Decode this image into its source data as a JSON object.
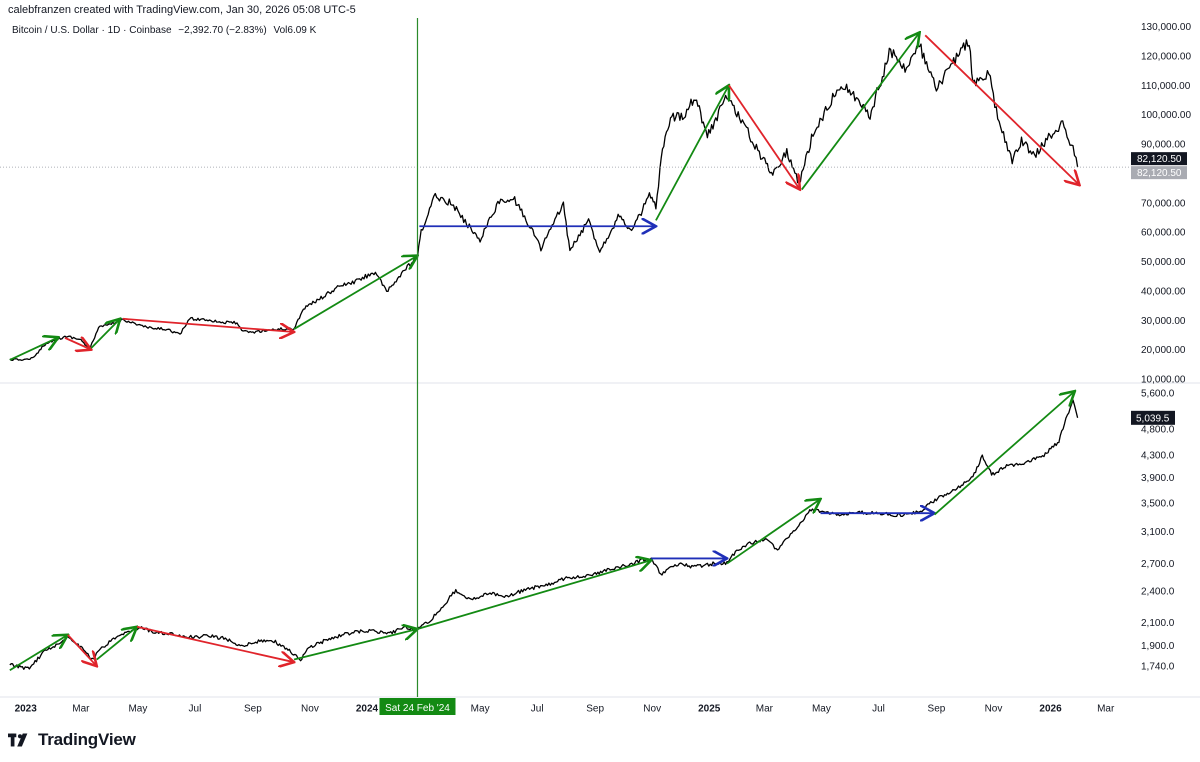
{
  "header": {
    "credit": "calebfranzen created with TradingView.com, Jan 30, 2026 05:08 UTC-5",
    "symbol": "Bitcoin / U.S. Dollar · 1D · Coinbase",
    "change": "−2,392.70 (−2.83%)",
    "volume_label": "Vol",
    "volume": "6.09 K"
  },
  "brand": {
    "name": "TradingView",
    "logo_icon": "tradingview-logo-icon"
  },
  "colors": {
    "up_arrow": "#138a13",
    "down_arrow": "#e0242b",
    "flat_arrow": "#1f2fb8",
    "price_line": "#000000",
    "vline": "#2b8a2b",
    "crosshair_tag": "#138a13"
  },
  "chart_data": [
    {
      "type": "line",
      "pane": "top",
      "title": "Bitcoin / U.S. Dollar · 1D · Coinbase",
      "ylim": [
        10000,
        130000
      ],
      "y_ticks": [
        "130,000.00",
        "120,000.00",
        "110,000.00",
        "100,000.00",
        "90,000.00",
        "82,120.50",
        "70,000.00",
        "60,000.00",
        "50,000.00",
        "40,000.00",
        "30,000.00",
        "20,000.00",
        "10,000.00"
      ],
      "last_value_label": "82,120.50",
      "last_value_label_2": "82,120.50",
      "last_value": 82120.5,
      "series": [
        {
          "values": [
            [
              "2022-12-15",
              16600
            ],
            [
              "2023-01-01",
              16600
            ],
            [
              "2023-01-10",
              17300
            ],
            [
              "2023-01-20",
              21500
            ],
            [
              "2023-02-01",
              23400
            ],
            [
              "2023-02-15",
              24500
            ],
            [
              "2023-03-01",
              23400
            ],
            [
              "2023-03-10",
              20000
            ],
            [
              "2023-03-20",
              27500
            ],
            [
              "2023-04-01",
              28500
            ],
            [
              "2023-04-15",
              30300
            ],
            [
              "2023-05-01",
              28500
            ],
            [
              "2023-05-15",
              27200
            ],
            [
              "2023-06-01",
              27000
            ],
            [
              "2023-06-15",
              25100
            ],
            [
              "2023-06-25",
              30500
            ],
            [
              "2023-07-15",
              30200
            ],
            [
              "2023-08-01",
              29200
            ],
            [
              "2023-08-15",
              29200
            ],
            [
              "2023-08-20",
              26200
            ],
            [
              "2023-09-01",
              25900
            ],
            [
              "2023-09-15",
              26600
            ],
            [
              "2023-10-01",
              27000
            ],
            [
              "2023-10-15",
              27100
            ],
            [
              "2023-10-25",
              34000
            ],
            [
              "2023-11-10",
              37000
            ],
            [
              "2023-12-05",
              42000
            ],
            [
              "2023-12-15",
              42500
            ],
            [
              "2024-01-10",
              46500
            ],
            [
              "2024-01-22",
              39500
            ],
            [
              "2024-02-10",
              47000
            ],
            [
              "2024-02-24",
              51500
            ],
            [
              "2024-02-28",
              60000
            ],
            [
              "2024-03-14",
              72500
            ],
            [
              "2024-04-01",
              69700
            ],
            [
              "2024-04-15",
              63500
            ],
            [
              "2024-05-01",
              57500
            ],
            [
              "2024-05-20",
              70000
            ],
            [
              "2024-06-07",
              71000
            ],
            [
              "2024-06-25",
              61000
            ],
            [
              "2024-07-05",
              54500
            ],
            [
              "2024-07-29",
              69500
            ],
            [
              "2024-08-05",
              53500
            ],
            [
              "2024-08-25",
              64000
            ],
            [
              "2024-09-06",
              53500
            ],
            [
              "2024-09-27",
              66000
            ],
            [
              "2024-10-10",
              60000
            ],
            [
              "2024-10-29",
              72500
            ],
            [
              "2024-11-05",
              68500
            ],
            [
              "2024-11-12",
              88000
            ],
            [
              "2024-11-22",
              99000
            ],
            [
              "2024-12-05",
              100000
            ],
            [
              "2024-12-17",
              106500
            ],
            [
              "2024-12-30",
              92500
            ],
            [
              "2025-01-20",
              106500
            ],
            [
              "2025-02-01",
              100000
            ],
            [
              "2025-02-25",
              86000
            ],
            [
              "2025-03-10",
              80000
            ],
            [
              "2025-03-25",
              87500
            ],
            [
              "2025-04-07",
              76500
            ],
            [
              "2025-04-22",
              93500
            ],
            [
              "2025-05-22",
              111000
            ],
            [
              "2025-06-22",
              100000
            ],
            [
              "2025-07-14",
              122000
            ],
            [
              "2025-07-31",
              115500
            ],
            [
              "2025-08-14",
              123500
            ],
            [
              "2025-09-01",
              108000
            ],
            [
              "2025-09-15",
              116000
            ],
            [
              "2025-10-06",
              125500
            ],
            [
              "2025-10-10",
              110000
            ],
            [
              "2025-10-27",
              114000
            ],
            [
              "2025-11-04",
              101000
            ],
            [
              "2025-11-21",
              84000
            ],
            [
              "2025-12-01",
              91000
            ],
            [
              "2025-12-15",
              86000
            ],
            [
              "2026-01-05",
              94500
            ],
            [
              "2026-01-14",
              97000
            ],
            [
              "2026-01-25",
              88000
            ],
            [
              "2026-01-30",
              82120
            ]
          ]
        }
      ],
      "annotations": [
        {
          "kind": "arrow",
          "color": "up",
          "from": [
            "2022-12-15",
            16500
          ],
          "to": [
            "2023-02-05",
            24200
          ]
        },
        {
          "kind": "arrow",
          "color": "down",
          "from": [
            "2023-02-12",
            24000
          ],
          "to": [
            "2023-03-12",
            20000
          ]
        },
        {
          "kind": "arrow",
          "color": "up",
          "from": [
            "2023-03-12",
            20500
          ],
          "to": [
            "2023-04-12",
            30500
          ]
        },
        {
          "kind": "arrow",
          "color": "down",
          "from": [
            "2023-04-15",
            30500
          ],
          "to": [
            "2023-10-15",
            26000
          ]
        },
        {
          "kind": "arrow",
          "color": "up",
          "from": [
            "2023-10-15",
            27000
          ],
          "to": [
            "2024-02-24",
            52000
          ]
        },
        {
          "kind": "arrow",
          "color": "flat",
          "from": [
            "2024-02-26",
            62000
          ],
          "to": [
            "2024-11-05",
            62000
          ]
        },
        {
          "kind": "arrow",
          "color": "up",
          "from": [
            "2024-11-05",
            64000
          ],
          "to": [
            "2025-01-22",
            110000
          ]
        },
        {
          "kind": "arrow",
          "color": "down",
          "from": [
            "2025-01-22",
            110000
          ],
          "to": [
            "2025-04-08",
            74500
          ]
        },
        {
          "kind": "arrow",
          "color": "up",
          "from": [
            "2025-04-10",
            74500
          ],
          "to": [
            "2025-08-14",
            128000
          ]
        },
        {
          "kind": "arrow",
          "color": "down",
          "from": [
            "2025-08-20",
            127000
          ],
          "to": [
            "2026-02-01",
            76000
          ]
        }
      ]
    },
    {
      "type": "line",
      "pane": "bottom",
      "scale": "log",
      "ylim": [
        1640,
        5800
      ],
      "y_ticks": [
        "5,600.0",
        "5,039.5",
        "4,800.0",
        "4,300.0",
        "3,900.0",
        "3,500.0",
        "3,100.0",
        "2,700.0",
        "2,400.0",
        "2,100.0",
        "1,900.0",
        "1,740.0"
      ],
      "last_value_label": "5,039.5",
      "last_value": 5039.5,
      "series": [
        {
          "values": [
            [
              "2022-12-15",
              1750
            ],
            [
              "2023-01-05",
              1720
            ],
            [
              "2023-01-20",
              1850
            ],
            [
              "2023-02-01",
              1900
            ],
            [
              "2023-02-15",
              1970
            ],
            [
              "2023-03-01",
              1890
            ],
            [
              "2023-03-13",
              1790
            ],
            [
              "2023-03-25",
              1890
            ],
            [
              "2023-04-05",
              1950
            ],
            [
              "2023-04-20",
              2010
            ],
            [
              "2023-05-05",
              2050
            ],
            [
              "2023-05-20",
              2010
            ],
            [
              "2023-06-10",
              1990
            ],
            [
              "2023-06-25",
              1970
            ],
            [
              "2023-07-15",
              1980
            ],
            [
              "2023-08-01",
              1960
            ],
            [
              "2023-08-20",
              1900
            ],
            [
              "2023-09-10",
              1940
            ],
            [
              "2023-09-25",
              1930
            ],
            [
              "2023-10-10",
              1860
            ],
            [
              "2023-10-22",
              1790
            ],
            [
              "2023-11-01",
              1890
            ],
            [
              "2023-11-20",
              1950
            ],
            [
              "2023-12-10",
              2000
            ],
            [
              "2024-01-05",
              2030
            ],
            [
              "2024-01-25",
              2000
            ],
            [
              "2024-02-10",
              2060
            ],
            [
              "2024-02-24",
              2030
            ],
            [
              "2024-03-10",
              2130
            ],
            [
              "2024-03-25",
              2280
            ],
            [
              "2024-04-05",
              2410
            ],
            [
              "2024-04-20",
              2310
            ],
            [
              "2024-05-10",
              2380
            ],
            [
              "2024-05-30",
              2350
            ],
            [
              "2024-06-20",
              2420
            ],
            [
              "2024-07-15",
              2470
            ],
            [
              "2024-08-01",
              2540
            ],
            [
              "2024-08-15",
              2550
            ],
            [
              "2024-09-01",
              2590
            ],
            [
              "2024-09-20",
              2640
            ],
            [
              "2024-10-10",
              2700
            ],
            [
              "2024-10-31",
              2770
            ],
            [
              "2024-11-10",
              2580
            ],
            [
              "2024-11-30",
              2700
            ],
            [
              "2024-12-15",
              2660
            ],
            [
              "2025-01-05",
              2700
            ],
            [
              "2025-01-20",
              2710
            ],
            [
              "2025-02-01",
              2870
            ],
            [
              "2025-02-15",
              2950
            ],
            [
              "2025-03-01",
              3000
            ],
            [
              "2025-03-15",
              2870
            ],
            [
              "2025-04-01",
              3100
            ],
            [
              "2025-04-20",
              3400
            ],
            [
              "2025-05-05",
              3360
            ],
            [
              "2025-05-25",
              3330
            ],
            [
              "2025-06-15",
              3360
            ],
            [
              "2025-07-05",
              3340
            ],
            [
              "2025-07-25",
              3320
            ],
            [
              "2025-08-15",
              3380
            ],
            [
              "2025-09-01",
              3560
            ],
            [
              "2025-09-20",
              3700
            ],
            [
              "2025-10-10",
              3910
            ],
            [
              "2025-10-20",
              4280
            ],
            [
              "2025-10-30",
              3950
            ],
            [
              "2025-11-15",
              4100
            ],
            [
              "2025-12-05",
              4150
            ],
            [
              "2025-12-25",
              4300
            ],
            [
              "2026-01-10",
              4550
            ],
            [
              "2026-01-25",
              5450
            ],
            [
              "2026-01-30",
              5040
            ]
          ]
        }
      ],
      "annotations": [
        {
          "kind": "arrow",
          "color": "up",
          "from": [
            "2022-12-15",
            1710
          ],
          "to": [
            "2023-02-15",
            1990
          ]
        },
        {
          "kind": "arrow",
          "color": "down",
          "from": [
            "2023-02-15",
            1990
          ],
          "to": [
            "2023-03-18",
            1740
          ]
        },
        {
          "kind": "arrow",
          "color": "up",
          "from": [
            "2023-03-18",
            1790
          ],
          "to": [
            "2023-04-30",
            2060
          ]
        },
        {
          "kind": "arrow",
          "color": "down",
          "from": [
            "2023-04-30",
            2060
          ],
          "to": [
            "2023-10-15",
            1770
          ]
        },
        {
          "kind": "arrow",
          "color": "up",
          "from": [
            "2023-10-15",
            1790
          ],
          "to": [
            "2024-02-24",
            2040
          ]
        },
        {
          "kind": "arrow",
          "color": "up",
          "from": [
            "2024-02-24",
            2040
          ],
          "to": [
            "2024-10-31",
            2740
          ]
        },
        {
          "kind": "arrow",
          "color": "flat",
          "from": [
            "2024-10-31",
            2760
          ],
          "to": [
            "2025-01-20",
            2760
          ]
        },
        {
          "kind": "arrow",
          "color": "up",
          "from": [
            "2025-01-20",
            2700
          ],
          "to": [
            "2025-04-30",
            3560
          ]
        },
        {
          "kind": "arrow",
          "color": "flat",
          "from": [
            "2025-04-30",
            3350
          ],
          "to": [
            "2025-08-30",
            3350
          ]
        },
        {
          "kind": "arrow",
          "color": "up",
          "from": [
            "2025-08-30",
            3330
          ],
          "to": [
            "2026-01-27",
            5650
          ]
        }
      ]
    }
  ],
  "x_axis": {
    "range": [
      "2022-12-12",
      "2026-03-27"
    ],
    "ticks": [
      {
        "date": "2023-01-01",
        "label": "2023",
        "bold": true
      },
      {
        "date": "2023-03-01",
        "label": "Mar",
        "bold": false
      },
      {
        "date": "2023-05-01",
        "label": "May",
        "bold": false
      },
      {
        "date": "2023-07-01",
        "label": "Jul",
        "bold": false
      },
      {
        "date": "2023-09-01",
        "label": "Sep",
        "bold": false
      },
      {
        "date": "2023-11-01",
        "label": "Nov",
        "bold": false
      },
      {
        "date": "2024-01-01",
        "label": "2024",
        "bold": true
      },
      {
        "date": "2024-05-01",
        "label": "May",
        "bold": false
      },
      {
        "date": "2024-07-01",
        "label": "Jul",
        "bold": false
      },
      {
        "date": "2024-09-01",
        "label": "Sep",
        "bold": false
      },
      {
        "date": "2024-11-01",
        "label": "Nov",
        "bold": false
      },
      {
        "date": "2025-01-01",
        "label": "2025",
        "bold": true
      },
      {
        "date": "2025-03-01",
        "label": "Mar",
        "bold": false
      },
      {
        "date": "2025-05-01",
        "label": "May",
        "bold": false
      },
      {
        "date": "2025-07-01",
        "label": "Jul",
        "bold": false
      },
      {
        "date": "2025-09-01",
        "label": "Sep",
        "bold": false
      },
      {
        "date": "2025-11-01",
        "label": "Nov",
        "bold": false
      },
      {
        "date": "2026-01-01",
        "label": "2026",
        "bold": true
      },
      {
        "date": "2026-03-01",
        "label": "Mar",
        "bold": false
      }
    ],
    "crosshair_date": "2024-02-24",
    "crosshair_label": "Sat 24 Feb '24"
  }
}
